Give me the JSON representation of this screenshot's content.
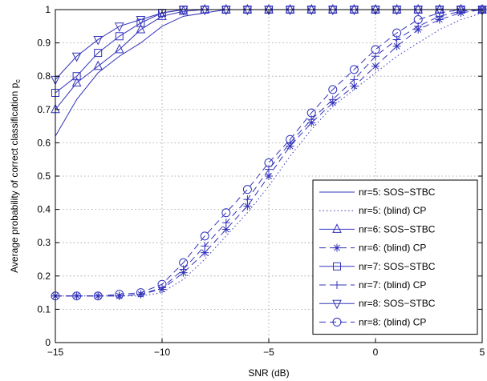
{
  "chart_data": {
    "type": "line",
    "xlabel": "SNR (dB)",
    "ylabel_main": "Average probability of correct classification p",
    "ylabel_sub": "c",
    "xlim": [
      -15,
      5
    ],
    "ylim": [
      0,
      1
    ],
    "xticks": [
      -15,
      -10,
      -5,
      0,
      5
    ],
    "xtick_labels": [
      "−15",
      "−10",
      "−5",
      "0",
      "5"
    ],
    "yticks": [
      0,
      0.1,
      0.2,
      0.3,
      0.4,
      0.5,
      0.6,
      0.7,
      0.8,
      0.9,
      1
    ],
    "ytick_labels": [
      "0",
      "0.1",
      "0.2",
      "0.3",
      "0.4",
      "0.5",
      "0.6",
      "0.7",
      "0.8",
      "0.9",
      "1"
    ],
    "grid": true,
    "legend_position": "bottom-right",
    "color": "#3333bb",
    "x": [
      -15,
      -14,
      -13,
      -12,
      -11,
      -10,
      -9,
      -8,
      -7,
      -6,
      -5,
      -4,
      -3,
      -2,
      -1,
      0,
      1,
      2,
      3,
      4,
      5
    ],
    "series": [
      {
        "name": "nr=5: SOS−STBC",
        "style": "solid",
        "marker": "none",
        "values": [
          0.62,
          0.73,
          0.81,
          0.86,
          0.9,
          0.95,
          0.98,
          0.99,
          1.0,
          1.0,
          1.0,
          1.0,
          1.0,
          1.0,
          1.0,
          1.0,
          1.0,
          1.0,
          1.0,
          1.0,
          1.0
        ]
      },
      {
        "name": "nr=5: (blind) CP",
        "style": "dotted",
        "marker": "none",
        "values": [
          0.14,
          0.14,
          0.14,
          0.14,
          0.14,
          0.15,
          0.19,
          0.25,
          0.32,
          0.39,
          0.47,
          0.56,
          0.64,
          0.71,
          0.76,
          0.81,
          0.86,
          0.9,
          0.94,
          0.97,
          0.99
        ]
      },
      {
        "name": "nr=6: SOS−STBC",
        "style": "solid",
        "marker": "triangle-up",
        "values": [
          0.7,
          0.78,
          0.83,
          0.88,
          0.94,
          0.98,
          0.995,
          1.0,
          1.0,
          1.0,
          1.0,
          1.0,
          1.0,
          1.0,
          1.0,
          1.0,
          1.0,
          1.0,
          1.0,
          1.0,
          1.0
        ]
      },
      {
        "name": "nr=6: (blind) CP",
        "style": "dashed",
        "marker": "star",
        "values": [
          0.14,
          0.14,
          0.14,
          0.14,
          0.145,
          0.16,
          0.21,
          0.27,
          0.34,
          0.41,
          0.5,
          0.59,
          0.66,
          0.72,
          0.77,
          0.83,
          0.89,
          0.94,
          0.97,
          0.99,
          1.0
        ]
      },
      {
        "name": "nr=7: SOS−STBC",
        "style": "solid",
        "marker": "square",
        "values": [
          0.75,
          0.8,
          0.87,
          0.92,
          0.96,
          0.99,
          1.0,
          1.0,
          1.0,
          1.0,
          1.0,
          1.0,
          1.0,
          1.0,
          1.0,
          1.0,
          1.0,
          1.0,
          1.0,
          1.0,
          1.0
        ]
      },
      {
        "name": "nr=7: (blind) CP",
        "style": "dashed",
        "marker": "plus",
        "values": [
          0.14,
          0.14,
          0.14,
          0.14,
          0.145,
          0.165,
          0.22,
          0.29,
          0.36,
          0.43,
          0.52,
          0.6,
          0.67,
          0.73,
          0.79,
          0.86,
          0.91,
          0.95,
          0.98,
          0.995,
          1.0
        ]
      },
      {
        "name": "nr=8: SOS−STBC",
        "style": "solid",
        "marker": "triangle-down",
        "values": [
          0.79,
          0.86,
          0.91,
          0.95,
          0.97,
          0.99,
          1.0,
          1.0,
          1.0,
          1.0,
          1.0,
          1.0,
          1.0,
          1.0,
          1.0,
          1.0,
          1.0,
          1.0,
          1.0,
          1.0,
          1.0
        ]
      },
      {
        "name": "nr=8: (blind) CP",
        "style": "dashed",
        "marker": "circle",
        "values": [
          0.14,
          0.14,
          0.14,
          0.145,
          0.15,
          0.175,
          0.24,
          0.32,
          0.39,
          0.46,
          0.54,
          0.61,
          0.69,
          0.76,
          0.82,
          0.88,
          0.93,
          0.97,
          0.99,
          1.0,
          1.0
        ]
      }
    ]
  }
}
